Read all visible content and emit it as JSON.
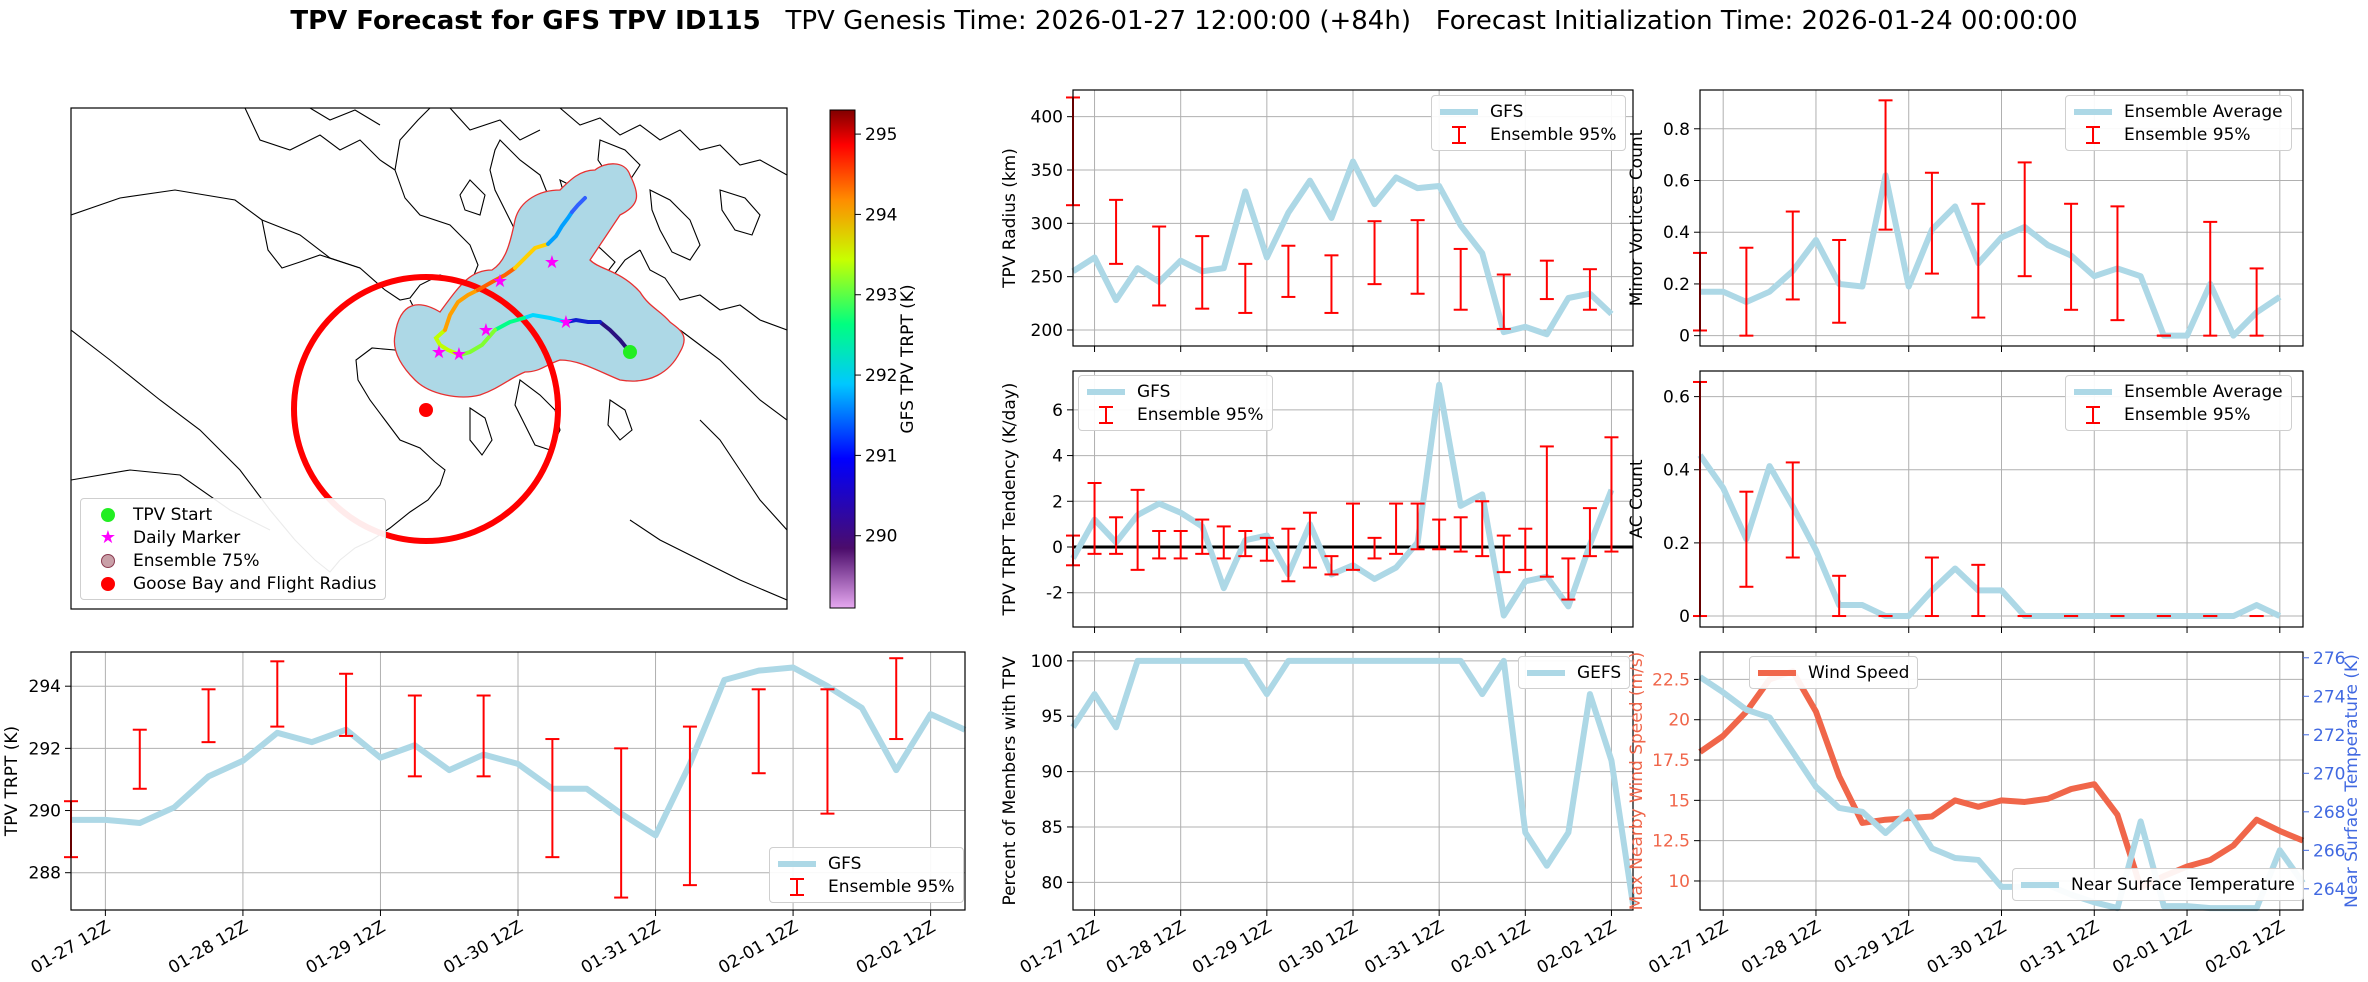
{
  "header": {
    "bold_title": "TPV Forecast for GFS TPV ID115",
    "genesis": "TPV Genesis Time: 2026-01-27 12:00:00 (+84h)",
    "init": "Forecast Initialization Time: 2026-01-24 00:00:00"
  },
  "x_tick_labels": [
    "01-27 12Z",
    "01-28 12Z",
    "01-29 12Z",
    "01-30 12Z",
    "01-31 12Z",
    "02-01 12Z",
    "02-02 12Z"
  ],
  "colors": {
    "gfs_line": "#add8e6",
    "error_bar": "#ff0000",
    "wind": "#f0664a",
    "temp_axis": "#4169e1",
    "start": "#22ee22",
    "daily": "#ff00ff",
    "goose_bay": "#ff0000"
  },
  "map": {
    "legend": [
      {
        "label": "TPV Start",
        "marker": "start-dot"
      },
      {
        "label": "Daily Marker",
        "marker": "star"
      },
      {
        "label": "Ensemble 75%",
        "marker": "ensemble-dot"
      },
      {
        "label": "Goose Bay and Flight Radius",
        "marker": "red-dot"
      }
    ],
    "colorbar": {
      "label": "GFS TPV TRPT (K)",
      "ticks": [
        290,
        291,
        292,
        293,
        294,
        295
      ],
      "min": 289.1,
      "max": 295.3
    }
  },
  "chart_data": [
    {
      "id": "tpv_radius",
      "type": "line",
      "ylabel": "TPV Radius (km)",
      "ylim": [
        185,
        425
      ],
      "yticks": [
        200,
        250,
        300,
        350,
        400
      ],
      "legend_pos": "top-right",
      "legend": [
        "GFS",
        "Ensemble 95%"
      ],
      "series": [
        {
          "name": "GFS",
          "values": [
            255,
            268,
            228,
            258,
            245,
            265,
            255,
            258,
            330,
            268,
            310,
            340,
            305,
            358,
            318,
            343,
            333,
            335,
            298,
            272,
            198,
            203,
            196,
            230,
            234,
            215
          ]
        }
      ],
      "errorbars": [
        [
          0,
          317,
          418
        ],
        [
          2,
          262,
          322
        ],
        [
          4,
          223,
          297
        ],
        [
          6,
          220,
          288
        ],
        [
          8,
          216,
          262
        ],
        [
          10,
          231,
          279
        ],
        [
          12,
          216,
          270
        ],
        [
          14,
          243,
          302
        ],
        [
          16,
          234,
          303
        ],
        [
          18,
          219,
          276
        ],
        [
          20,
          201,
          252
        ],
        [
          22,
          229,
          265
        ],
        [
          24,
          219,
          257
        ]
      ]
    },
    {
      "id": "minor_vortices",
      "type": "line",
      "ylabel": "Minor Vortices Count",
      "ylim": [
        -0.04,
        0.95
      ],
      "yticks": [
        0.0,
        0.2,
        0.4,
        0.6,
        0.8
      ],
      "legend_pos": "top-right",
      "legend": [
        "Ensemble Average",
        "Ensemble 95%"
      ],
      "series": [
        {
          "name": "Ensemble Average",
          "values": [
            0.17,
            0.17,
            0.13,
            0.17,
            0.25,
            0.37,
            0.2,
            0.19,
            0.62,
            0.19,
            0.41,
            0.5,
            0.28,
            0.38,
            0.42,
            0.35,
            0.31,
            0.23,
            0.26,
            0.23,
            0.0,
            0.0,
            0.2,
            0.0,
            0.09,
            0.15
          ]
        }
      ],
      "errorbars": [
        [
          0,
          0.02,
          0.32
        ],
        [
          2,
          0.0,
          0.34
        ],
        [
          4,
          0.14,
          0.48
        ],
        [
          6,
          0.05,
          0.37
        ],
        [
          8,
          0.41,
          0.91
        ],
        [
          10,
          0.24,
          0.63
        ],
        [
          12,
          0.07,
          0.51
        ],
        [
          14,
          0.23,
          0.67
        ],
        [
          16,
          0.1,
          0.51
        ],
        [
          18,
          0.06,
          0.5
        ],
        [
          20,
          0.0,
          0.0
        ],
        [
          22,
          0.0,
          0.44
        ],
        [
          24,
          0.0,
          0.26
        ]
      ]
    },
    {
      "id": "trpt_tendency",
      "type": "line",
      "ylabel": "TPV TRPT Tendency (K/day)",
      "ylim": [
        -3.5,
        7.7
      ],
      "yticks": [
        -2,
        0,
        2,
        4,
        6
      ],
      "legend_pos": "top-left",
      "legend": [
        "GFS",
        "Ensemble 95%"
      ],
      "zero_line": true,
      "series": [
        {
          "name": "GFS",
          "values": [
            -0.5,
            1.2,
            0.2,
            1.4,
            1.9,
            1.5,
            0.9,
            -1.8,
            0.3,
            0.5,
            -1.2,
            1.0,
            -1.2,
            -0.8,
            -1.4,
            -0.9,
            0.2,
            7.1,
            1.8,
            2.3,
            -3.0,
            -1.5,
            -1.3,
            -2.6,
            0.1,
            2.5
          ]
        }
      ],
      "errorbars": [
        [
          0,
          -0.8,
          0.5
        ],
        [
          1,
          -0.3,
          2.8
        ],
        [
          2,
          -0.3,
          1.3
        ],
        [
          3,
          -1.0,
          2.5
        ],
        [
          4,
          -0.5,
          0.7
        ],
        [
          5,
          -0.5,
          0.7
        ],
        [
          6,
          -0.3,
          1.2
        ],
        [
          7,
          -0.5,
          0.9
        ],
        [
          8,
          -0.4,
          0.7
        ],
        [
          9,
          -0.6,
          0.4
        ],
        [
          10,
          -1.5,
          0.8
        ],
        [
          11,
          -0.9,
          1.5
        ],
        [
          12,
          -1.2,
          -0.4
        ],
        [
          13,
          -1.0,
          1.9
        ],
        [
          14,
          -0.5,
          0.4
        ],
        [
          15,
          -0.3,
          1.9
        ],
        [
          16,
          -0.1,
          1.9
        ],
        [
          17,
          -0.1,
          1.2
        ],
        [
          18,
          -0.2,
          1.3
        ],
        [
          19,
          -0.4,
          2.0
        ],
        [
          20,
          -1.1,
          0.5
        ],
        [
          21,
          -1.0,
          0.8
        ],
        [
          22,
          -1.3,
          4.4
        ],
        [
          23,
          -2.3,
          -0.5
        ],
        [
          24,
          -0.4,
          1.7
        ],
        [
          25,
          -0.2,
          4.8
        ]
      ]
    },
    {
      "id": "ac_count",
      "type": "line",
      "ylabel": "AC Count",
      "ylim": [
        -0.03,
        0.67
      ],
      "yticks": [
        0.0,
        0.2,
        0.4,
        0.6
      ],
      "legend_pos": "top-right",
      "legend": [
        "Ensemble Average",
        "Ensemble 95%"
      ],
      "series": [
        {
          "name": "Ensemble Average",
          "values": [
            0.44,
            0.35,
            0.21,
            0.41,
            0.3,
            0.18,
            0.03,
            0.03,
            0.0,
            0.0,
            0.07,
            0.13,
            0.07,
            0.07,
            0.0,
            0.0,
            0.0,
            0.0,
            0.0,
            0.0,
            0.0,
            0.0,
            0.0,
            0.0,
            0.03,
            0.0
          ]
        }
      ],
      "errorbars": [
        [
          0,
          0.0,
          0.64
        ],
        [
          2,
          0.08,
          0.34
        ],
        [
          4,
          0.16,
          0.42
        ],
        [
          6,
          0.0,
          0.11
        ],
        [
          8,
          0.0,
          0.0
        ],
        [
          10,
          0.0,
          0.16
        ],
        [
          12,
          0.0,
          0.14
        ],
        [
          14,
          0.0,
          0.0
        ],
        [
          16,
          0.0,
          0.0
        ],
        [
          18,
          0.0,
          0.0
        ],
        [
          20,
          0.0,
          0.0
        ],
        [
          22,
          0.0,
          0.0
        ],
        [
          24,
          0.0,
          0.0
        ]
      ]
    },
    {
      "id": "tpv_trpt",
      "type": "line",
      "ylabel": "TPV TRPT (K)",
      "ylim": [
        286.8,
        295.1
      ],
      "yticks": [
        288,
        290,
        292,
        294
      ],
      "legend_pos": "bottom-right",
      "legend": [
        "GFS",
        "Ensemble 95%"
      ],
      "series": [
        {
          "name": "GFS",
          "values": [
            289.7,
            289.7,
            289.6,
            290.1,
            291.1,
            291.6,
            292.5,
            292.2,
            292.6,
            291.7,
            292.1,
            291.3,
            291.8,
            291.5,
            290.7,
            290.7,
            289.9,
            289.2,
            291.5,
            294.2,
            294.5,
            294.6,
            294.0,
            293.3,
            291.3,
            293.1,
            292.6
          ]
        }
      ],
      "errorbars": [
        [
          0,
          288.5,
          290.3
        ],
        [
          2,
          290.7,
          292.6
        ],
        [
          4,
          292.2,
          293.9
        ],
        [
          6,
          292.7,
          294.8
        ],
        [
          8,
          292.4,
          294.4
        ],
        [
          10,
          291.1,
          293.7
        ],
        [
          12,
          291.1,
          293.7
        ],
        [
          14,
          288.5,
          292.3
        ],
        [
          16,
          287.2,
          292.0
        ],
        [
          18,
          287.6,
          292.7
        ],
        [
          20,
          291.2,
          293.9
        ],
        [
          22,
          289.9,
          293.9
        ],
        [
          24,
          292.3,
          294.9
        ]
      ]
    },
    {
      "id": "percent_members",
      "type": "line",
      "ylabel": "Percent of Members with TPV",
      "ylim": [
        77.5,
        100.8
      ],
      "yticks": [
        80,
        85,
        90,
        95,
        100
      ],
      "legend_pos": "top-right",
      "legend": [
        "GEFS"
      ],
      "series": [
        {
          "name": "GEFS",
          "values": [
            94,
            97,
            94,
            100,
            100,
            100,
            100,
            100,
            100,
            97,
            100,
            100,
            100,
            100,
            100,
            100,
            100,
            100,
            100,
            97,
            100,
            84.5,
            81.5,
            84.5,
            97,
            91,
            78
          ]
        }
      ]
    },
    {
      "id": "wind_temp",
      "type": "line",
      "ylabel": "Max Nearby Wind Speed (m/s)",
      "ylim": [
        8.2,
        24.2
      ],
      "yticks": [
        10.0,
        12.5,
        15.0,
        17.5,
        20.0,
        22.5
      ],
      "y2label": "Near Surface Temperature (K)",
      "y2lim": [
        262.9,
        276.3
      ],
      "y2ticks": [
        264,
        266,
        268,
        270,
        272,
        274,
        276
      ],
      "legend": [
        "Wind Speed",
        "Near Surface Temperature"
      ],
      "series": [
        {
          "name": "Wind Speed",
          "axis": "left",
          "values": [
            18.0,
            19.0,
            20.5,
            22.5,
            23.0,
            20.5,
            16.5,
            13.6,
            13.8,
            13.9,
            14.0,
            15.0,
            14.6,
            15.0,
            14.9,
            15.1,
            15.7,
            16.0,
            14.1,
            9.6,
            10.3,
            10.9,
            11.3,
            12.2,
            13.8,
            13.1,
            12.5
          ]
        },
        {
          "name": "Near Surface Temperature",
          "axis": "right",
          "values": [
            275.0,
            274.2,
            273.3,
            272.9,
            271.1,
            269.3,
            268.2,
            268.0,
            266.9,
            268.0,
            266.1,
            265.6,
            265.5,
            264.1,
            264.1,
            264.2,
            263.7,
            263.3,
            263.0,
            267.5,
            263.1,
            263.1,
            263.0,
            263.0,
            263.0,
            266.0,
            264.3
          ]
        }
      ]
    }
  ]
}
